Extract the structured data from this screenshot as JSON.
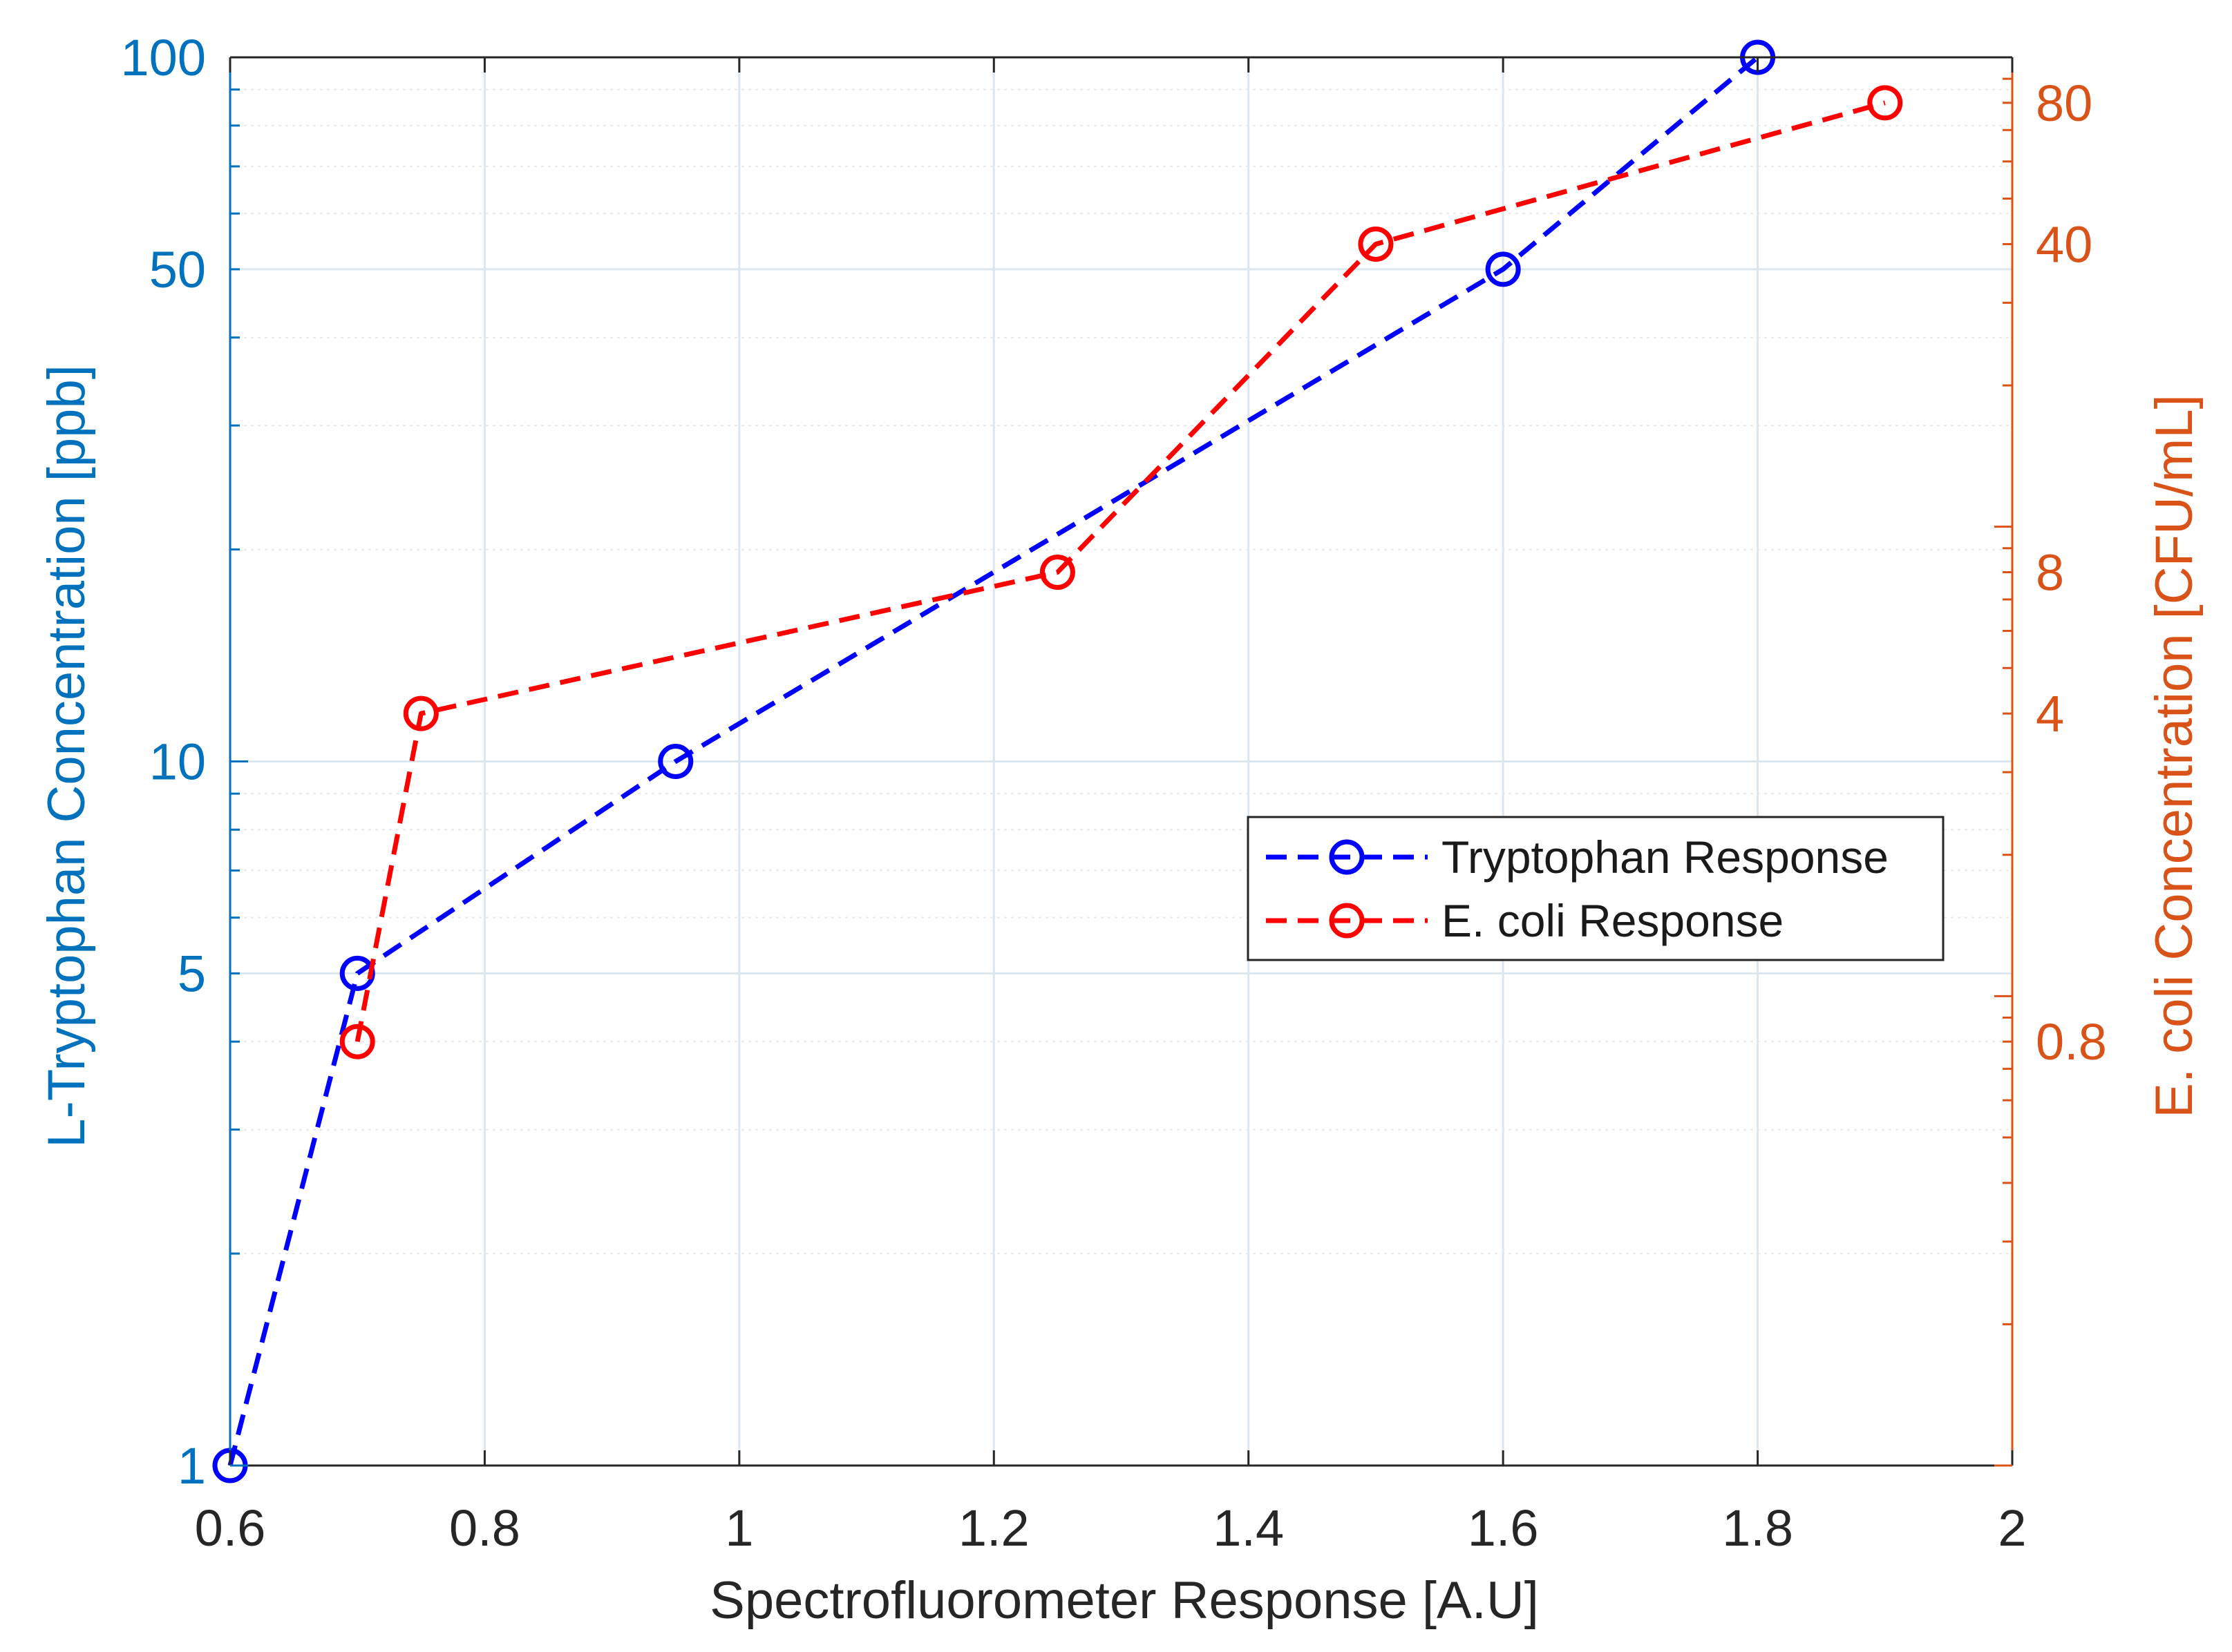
{
  "colors": {
    "left_axis": "#0072BD",
    "right_axis": "#D95319",
    "tryptophan_series": "#0000FF",
    "ecoli_series": "#FF0000",
    "grid_major": "#dbe6ee",
    "grid_minor": "#e9e9e9",
    "axis_black": "#262626"
  },
  "chart_data": {
    "type": "line",
    "xlabel": "Spectrofluorometer Response [A.U]",
    "ylabel_left": "L-Tryptophan Concentration [ppb]",
    "ylabel_right": "E. coli Concentration [CFU/mL]",
    "xlim": [
      0.6,
      2.0
    ],
    "xticks": [
      0.6,
      0.8,
      1.0,
      1.2,
      1.4,
      1.6,
      1.8,
      2.0
    ],
    "xtick_labels": [
      "0.6",
      "0.8",
      "1",
      "1.2",
      "1.4",
      "1.6",
      "1.8",
      "2"
    ],
    "ylim_left": [
      1,
      100
    ],
    "yscale_left": "log",
    "yticks_left": [
      1,
      5,
      10,
      50,
      100
    ],
    "ytick_labels_left": [
      "1",
      "5",
      "10",
      "50",
      "100"
    ],
    "ylim_right": [
      0.1,
      100
    ],
    "yscale_right": "log",
    "yticks_right": [
      0.8,
      4,
      8,
      40,
      80
    ],
    "ytick_labels_right": [
      "0.8",
      "4",
      "8",
      "40",
      "80"
    ],
    "grid": true,
    "legend_position": "center-right",
    "series": [
      {
        "name": "Tryptophan Response",
        "axis": "left",
        "line_style": "dashed",
        "marker": "circle",
        "x": [
          0.6,
          0.7,
          0.95,
          1.6,
          1.8
        ],
        "y": [
          1,
          5,
          10,
          50,
          100
        ]
      },
      {
        "name": "E. coli Response",
        "axis": "right",
        "line_style": "dashed",
        "marker": "circle",
        "x": [
          0.7,
          0.75,
          1.25,
          1.5,
          1.9
        ],
        "y": [
          0.8,
          4,
          8,
          40,
          80
        ]
      }
    ]
  }
}
